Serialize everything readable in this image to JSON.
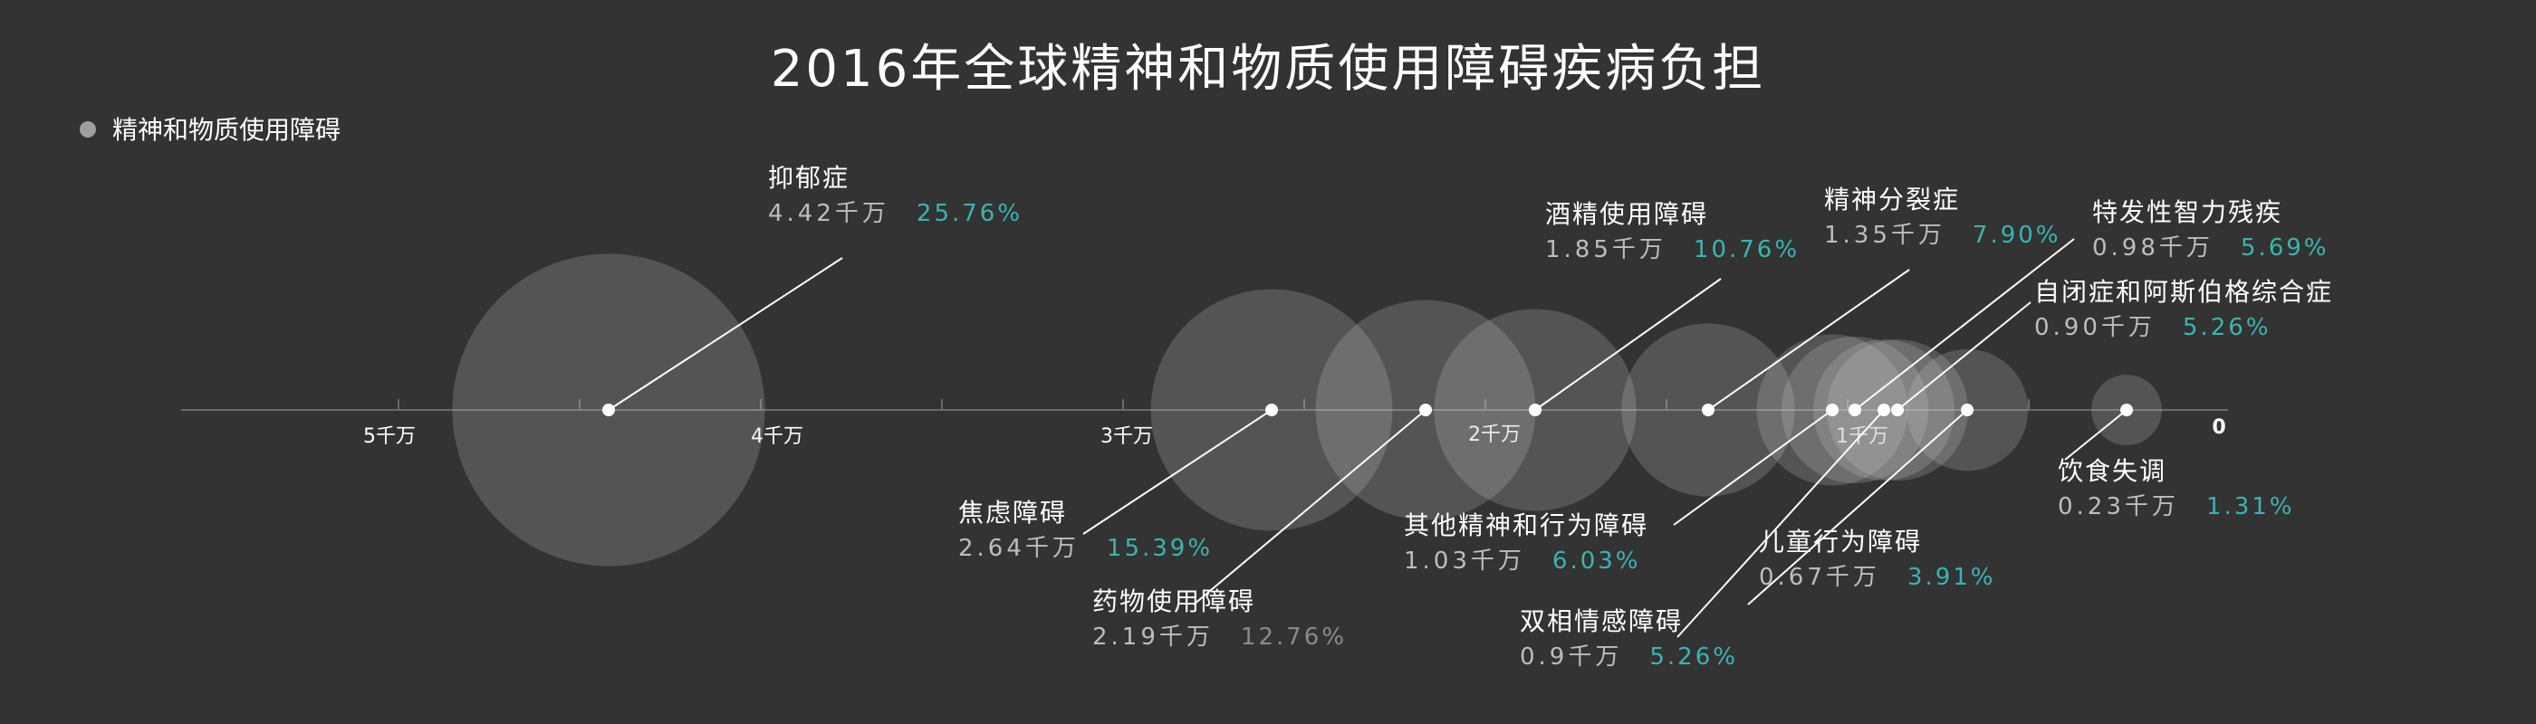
{
  "title": "2016年全球精神和物质使用障碍疾病负担",
  "legend": {
    "label": "精神和物质使用障碍",
    "color": "#9e9e9e"
  },
  "colors": {
    "background": "#333333",
    "bubble": "#cfcfcf",
    "axis": "#6a6a6a",
    "percent_teal": "#39b5b0",
    "percent_gray": "#8a8a8a"
  },
  "chart_data": {
    "type": "scatter",
    "title": "2016年全球精神和物质使用障碍疾病负担",
    "unit": "千万",
    "xlim": [
      5.6,
      0
    ],
    "axis_ticks": [
      {
        "value": 5,
        "label": "5千万"
      },
      {
        "value": 4,
        "label": "4千万"
      },
      {
        "value": 3,
        "label": "3千万"
      },
      {
        "value": 2,
        "label": "2千万"
      },
      {
        "value": 1,
        "label": "1千万"
      },
      {
        "value": 0,
        "label": "0"
      }
    ],
    "points": [
      {
        "name": "抑郁症",
        "value": 4.42,
        "value_label": "4.42千万",
        "percent": 25.76,
        "percent_label": "25.76%",
        "percent_color": "teal"
      },
      {
        "name": "焦虑障碍",
        "value": 2.64,
        "value_label": "2.64千万",
        "percent": 15.39,
        "percent_label": "15.39%",
        "percent_color": "teal"
      },
      {
        "name": "药物使用障碍",
        "value": 2.19,
        "value_label": "2.19千万",
        "percent": 12.76,
        "percent_label": "12.76%",
        "percent_color": "gray"
      },
      {
        "name": "酒精使用障碍",
        "value": 1.85,
        "value_label": "1.85千万",
        "percent": 10.76,
        "percent_label": "10.76%",
        "percent_color": "teal"
      },
      {
        "name": "精神分裂症",
        "value": 1.35,
        "value_label": "1.35千万",
        "percent": 7.9,
        "percent_label": "7.90%",
        "percent_color": "teal"
      },
      {
        "name": "其他精神和行为障碍",
        "value": 1.03,
        "value_label": "1.03千万",
        "percent": 6.03,
        "percent_label": "6.03%",
        "percent_color": "teal"
      },
      {
        "name": "特发性智力残疾",
        "value": 0.98,
        "value_label": "0.98千万",
        "percent": 5.69,
        "percent_label": "5.69%",
        "percent_color": "teal"
      },
      {
        "name": "双相情感障碍",
        "value": 0.9,
        "value_label": "0.9千万",
        "percent": 5.26,
        "percent_label": "5.26%",
        "percent_color": "teal"
      },
      {
        "name": "自闭症和阿斯伯格综合症",
        "value": 0.9,
        "value_label": "0.90千万",
        "percent": 5.26,
        "percent_label": "5.26%",
        "percent_color": "teal"
      },
      {
        "name": "儿童行为障碍",
        "value": 0.67,
        "value_label": "0.67千万",
        "percent": 3.91,
        "percent_label": "3.91%",
        "percent_color": "teal"
      },
      {
        "name": "饮食失调",
        "value": 0.23,
        "value_label": "0.23千万",
        "percent": 1.31,
        "percent_label": "1.31%",
        "percent_color": "teal"
      }
    ]
  }
}
